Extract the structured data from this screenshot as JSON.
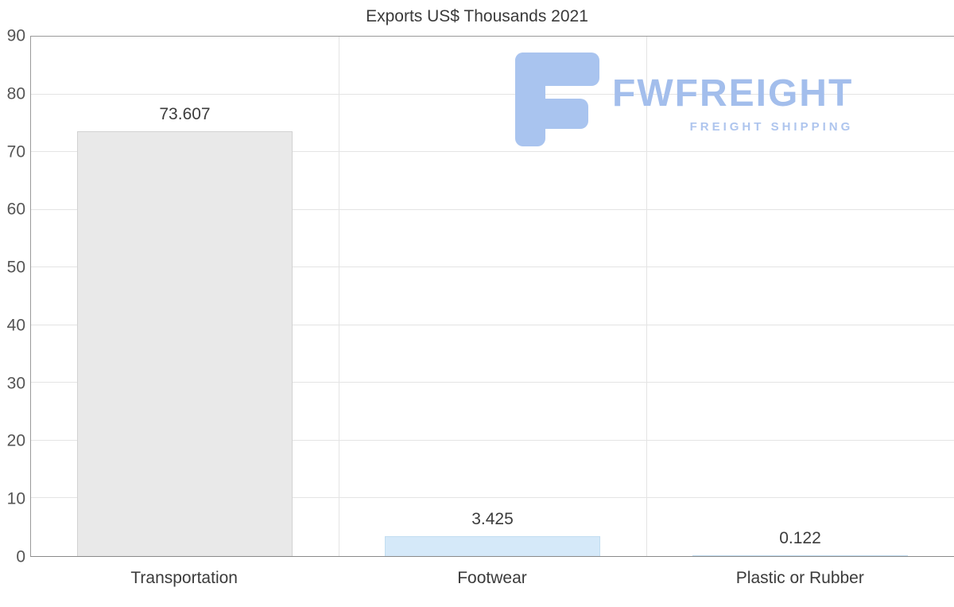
{
  "chart_data": {
    "type": "bar",
    "title": "Exports US$ Thousands 2021",
    "categories": [
      "Transportation",
      "Footwear",
      "Plastic or Rubber"
    ],
    "values": [
      73.607,
      3.425,
      0.122
    ],
    "value_labels": [
      "73.607",
      "3.425",
      "0.122"
    ],
    "xlabel": "",
    "ylabel": "",
    "ylim": [
      0,
      90
    ],
    "ytick_step": 10,
    "ytick_labels": [
      "0",
      "10",
      "20",
      "30",
      "40",
      "50",
      "60",
      "70",
      "80",
      "90"
    ],
    "grid": true,
    "legend": "none",
    "bar_colors": [
      "#e9e9e9",
      "#d5e9f9",
      "#d5e9f9"
    ],
    "bar_border_colors": [
      "#d2d2d2",
      "#c2ddf1",
      "#c2ddf1"
    ]
  },
  "logo": {
    "brand": "FWFREIGHT",
    "tagline": "FREIGHT SHIPPING",
    "brand_color": "#a3beec",
    "tagline_color": "#aec5ee",
    "icon_color": "#a9c4ef",
    "icon_name": "fwfreight-f-mark"
  },
  "colors": {
    "background": "#ffffff",
    "gridline": "#e4e4e4",
    "axis_line": "#9a9a9a",
    "title_text": "#3a3a3a",
    "tick_text": "#555555",
    "label_text": "#3b3b3b"
  }
}
